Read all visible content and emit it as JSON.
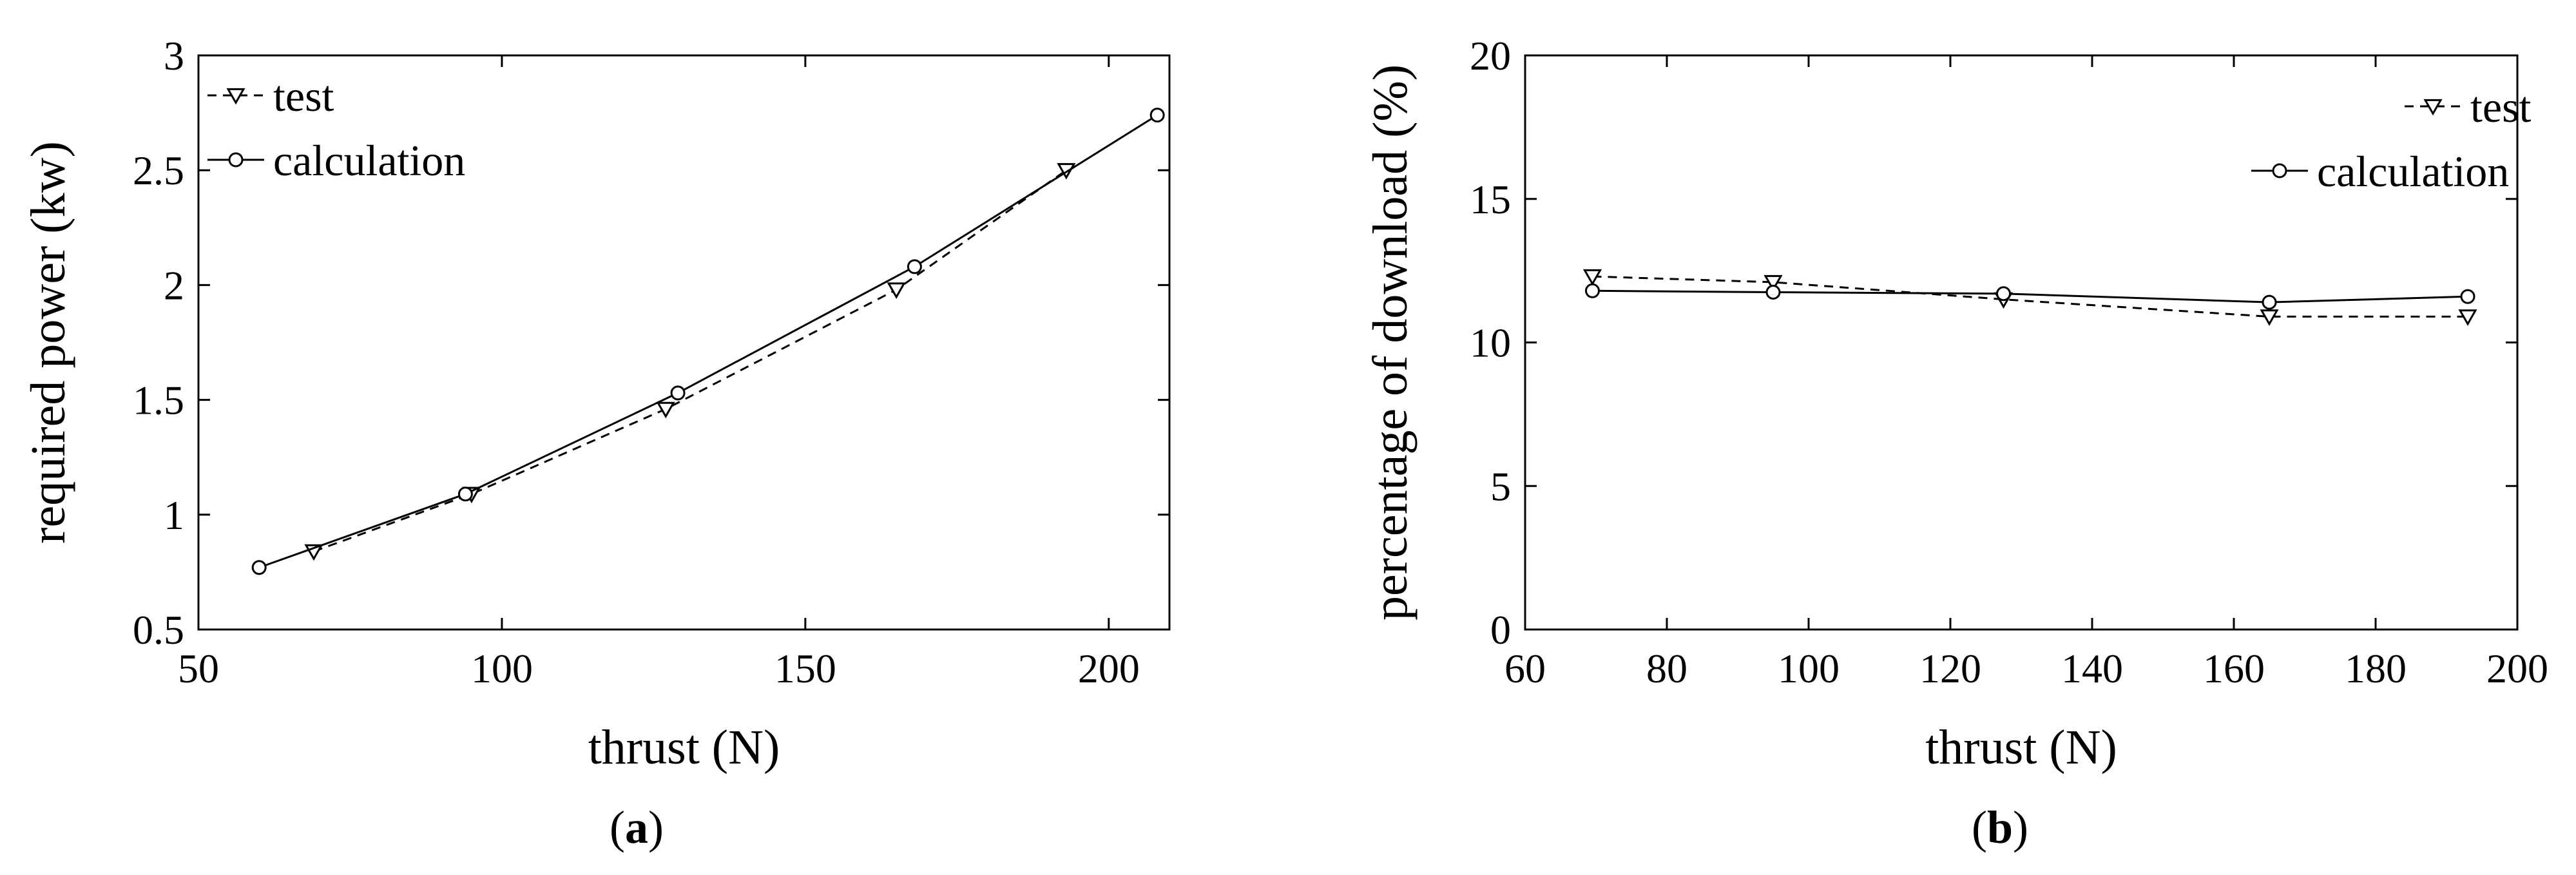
{
  "chart_data": [
    {
      "type": "line",
      "panel_label": "a",
      "xlabel": "thrust (N)",
      "ylabel": "required power (kw)",
      "xlim": [
        50,
        210
      ],
      "ylim": [
        0.5,
        3
      ],
      "xticks": [
        50,
        100,
        150,
        200
      ],
      "yticks": [
        0.5,
        1,
        1.5,
        2,
        2.5,
        3
      ],
      "ytick_labels": [
        "0.5",
        "1",
        "1.5",
        "2",
        "2.5",
        "3"
      ],
      "legend_position": "top-left",
      "grid": false,
      "series": [
        {
          "name": "test",
          "style": "dashed",
          "marker": "triangle-down",
          "x": [
            69,
            95,
            127,
            165,
            193
          ],
          "y": [
            0.84,
            1.09,
            1.46,
            1.98,
            2.5
          ]
        },
        {
          "name": "calculation",
          "style": "solid",
          "marker": "circle",
          "x": [
            60,
            94,
            129,
            168,
            208
          ],
          "y": [
            0.77,
            1.09,
            1.53,
            2.08,
            2.74
          ]
        }
      ]
    },
    {
      "type": "line",
      "panel_label": "b",
      "xlabel": "thrust (N)",
      "ylabel": "percentage of download (%)",
      "xlim": [
        60,
        200
      ],
      "ylim": [
        0,
        20
      ],
      "xticks": [
        60,
        80,
        100,
        120,
        140,
        160,
        180,
        200
      ],
      "yticks": [
        0,
        5,
        10,
        15,
        20
      ],
      "ytick_labels": [
        "0",
        "5",
        "10",
        "15",
        "20"
      ],
      "legend_position": "top-right",
      "grid": false,
      "series": [
        {
          "name": "test",
          "style": "dashed",
          "marker": "triangle-down",
          "x": [
            69.5,
            95,
            127.5,
            165,
            193
          ],
          "y": [
            12.3,
            12.1,
            11.5,
            10.9,
            10.9
          ]
        },
        {
          "name": "calculation",
          "style": "solid",
          "marker": "circle",
          "x": [
            69.5,
            95,
            127.5,
            165,
            193
          ],
          "y": [
            11.8,
            11.75,
            11.7,
            11.4,
            11.6
          ]
        }
      ]
    }
  ]
}
